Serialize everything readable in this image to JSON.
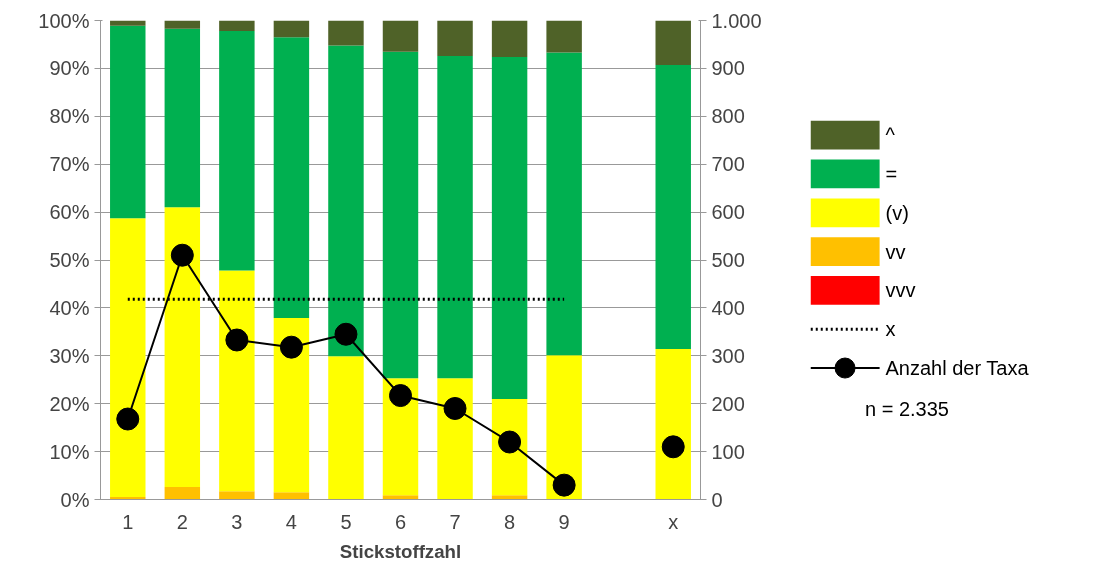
{
  "chart_data": {
    "type": "bar",
    "stacked": true,
    "xlabel": "Stickstoffzahl",
    "categories": [
      "1",
      "2",
      "3",
      "4",
      "5",
      "6",
      "7",
      "8",
      "9",
      null,
      "x"
    ],
    "series": [
      {
        "name": "vvv",
        "color": "#ff0000",
        "values": [
          0,
          0,
          0,
          0,
          0,
          0,
          0,
          0,
          0,
          null,
          0
        ]
      },
      {
        "name": "vv",
        "color": "#ffc000",
        "values": [
          0.5,
          2.6,
          1.7,
          1.5,
          0,
          0.9,
          0,
          0.9,
          0,
          null,
          0
        ]
      },
      {
        "name": "(v)",
        "color": "#ffff00",
        "values": [
          58.2,
          58.4,
          46.1,
          36.4,
          29.9,
          24.4,
          25.3,
          20.1,
          30.1,
          null,
          31.4
        ]
      },
      {
        "name": "=",
        "color": "#00b050",
        "values": [
          40.2,
          37.3,
          50.0,
          58.6,
          64.9,
          68.2,
          67.3,
          71.4,
          63.2,
          null,
          59.3
        ]
      },
      {
        "name": "^",
        "color": "#4f6228",
        "values": [
          1.1,
          1.7,
          2.2,
          3.5,
          5.2,
          6.5,
          7.4,
          7.6,
          6.7,
          null,
          9.3
        ]
      },
      {
        "name": "x",
        "type": "line",
        "line_style": "dotted",
        "marker": "none",
        "color": "#000000",
        "values": [
          41.8,
          41.8,
          41.8,
          41.8,
          41.8,
          41.8,
          41.8,
          41.8,
          41.8,
          null,
          null
        ]
      },
      {
        "name": "Anzahl der Taxa",
        "type": "line",
        "axis": "y2",
        "line_style": "solid",
        "marker": "circle",
        "color": "#000000",
        "values": [
          168,
          510,
          333,
          318,
          345,
          217,
          190,
          120,
          30,
          null,
          110
        ]
      }
    ],
    "ylim": [
      0,
      100
    ],
    "yticks": [
      {
        "value": 0,
        "label": "0%"
      },
      {
        "value": 10,
        "label": "10%"
      },
      {
        "value": 20,
        "label": "20%"
      },
      {
        "value": 30,
        "label": "30%"
      },
      {
        "value": 40,
        "label": "40%"
      },
      {
        "value": 50,
        "label": "50%"
      },
      {
        "value": 60,
        "label": "60%"
      },
      {
        "value": 70,
        "label": "70%"
      },
      {
        "value": 80,
        "label": "80%"
      },
      {
        "value": 90,
        "label": "90%"
      },
      {
        "value": 100,
        "label": "100%"
      }
    ],
    "y2lim": [
      0,
      1000
    ],
    "y2ticks": [
      0,
      100,
      200,
      300,
      400,
      500,
      600,
      700,
      800,
      900,
      {
        "value": 1000,
        "label": "1.000"
      }
    ],
    "grid": "y",
    "legend": "right",
    "annotations": [
      "n = 2.335"
    ]
  }
}
